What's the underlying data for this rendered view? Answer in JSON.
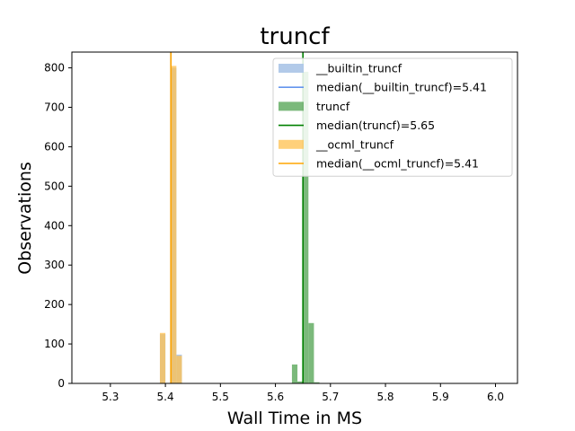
{
  "chart_data": {
    "type": "histogram",
    "title": "truncf",
    "xlabel": "Wall Time in MS",
    "ylabel": "Observations",
    "xlim": [
      5.23,
      6.04
    ],
    "ylim": [
      0,
      840
    ],
    "xticks": [
      "5.3",
      "5.4",
      "5.5",
      "5.6",
      "5.7",
      "5.8",
      "5.9",
      "6.0"
    ],
    "xtick_values": [
      5.3,
      5.4,
      5.5,
      5.6,
      5.7,
      5.8,
      5.9,
      6.0
    ],
    "yticks": [
      "0",
      "100",
      "200",
      "300",
      "400",
      "500",
      "600",
      "700",
      "800"
    ],
    "ytick_values": [
      0,
      100,
      200,
      300,
      400,
      500,
      600,
      700,
      800
    ],
    "grid": false,
    "legend_position": "top-right",
    "series": [
      {
        "name": "__builtin_truncf",
        "color": "#aec7e8",
        "opacity": 0.95,
        "bins": [
          {
            "x0": 5.39,
            "x1": 5.4,
            "count": 125
          },
          {
            "x0": 5.4,
            "x1": 5.41,
            "count": 0
          },
          {
            "x0": 5.41,
            "x1": 5.42,
            "count": 800
          },
          {
            "x0": 5.42,
            "x1": 5.43,
            "count": 73
          }
        ],
        "median": 5.41,
        "median_label": "median(__builtin_truncf)=5.41",
        "median_color": "#6495ed"
      },
      {
        "name": "truncf",
        "color": "#5aa85a",
        "opacity": 0.8,
        "bins": [
          {
            "x0": 5.63,
            "x1": 5.64,
            "count": 48
          },
          {
            "x0": 5.64,
            "x1": 5.65,
            "count": 5
          },
          {
            "x0": 5.65,
            "x1": 5.66,
            "count": 790
          },
          {
            "x0": 5.66,
            "x1": 5.67,
            "count": 153
          },
          {
            "x0": 5.67,
            "x1": 5.68,
            "count": 3
          }
        ],
        "median": 5.65,
        "median_label": "median(truncf)=5.65",
        "median_color": "#008000"
      },
      {
        "name": "__ocml_truncf",
        "color": "#ffc04d",
        "opacity": 0.75,
        "bins": [
          {
            "x0": 5.39,
            "x1": 5.4,
            "count": 128
          },
          {
            "x0": 5.4,
            "x1": 5.41,
            "count": 0
          },
          {
            "x0": 5.41,
            "x1": 5.42,
            "count": 805
          },
          {
            "x0": 5.42,
            "x1": 5.43,
            "count": 70
          }
        ],
        "median": 5.41,
        "median_label": "median(__ocml_truncf)=5.41",
        "median_color": "#ffa500"
      }
    ]
  }
}
